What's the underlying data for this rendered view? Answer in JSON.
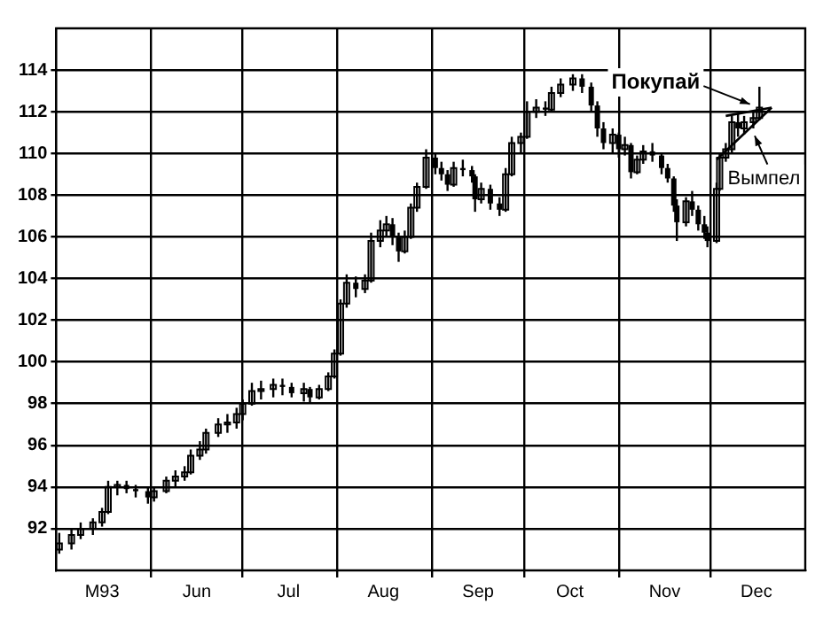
{
  "chart_data": {
    "type": "candlestick",
    "series": [
      {
        "color": "#000000",
        "x": [
          "1993-05-02",
          "1993-05-06",
          "1993-05-09",
          "1993-05-13",
          "1993-05-16",
          "1993-05-18",
          "1993-05-21",
          "1993-05-24",
          "1993-05-27",
          "1993-05-31",
          "1993-06-02",
          "1993-06-06",
          "1993-06-09",
          "1993-06-12",
          "1993-06-14",
          "1993-06-17",
          "1993-06-19",
          "1993-06-23",
          "1993-06-26",
          "1993-06-29",
          "1993-07-01",
          "1993-07-04",
          "1993-07-07",
          "1993-07-11",
          "1993-07-14",
          "1993-07-17",
          "1993-07-21",
          "1993-07-23",
          "1993-07-26",
          "1993-07-29",
          "1993-07-31",
          "1993-08-02",
          "1993-08-04",
          "1993-08-07",
          "1993-08-10",
          "1993-08-12",
          "1993-08-15",
          "1993-08-17",
          "1993-08-19",
          "1993-08-21",
          "1993-08-23",
          "1993-08-25",
          "1993-08-27",
          "1993-08-30",
          "1993-09-02",
          "1993-09-04",
          "1993-09-06",
          "1993-09-08",
          "1993-09-11",
          "1993-09-14",
          "1993-09-15",
          "1993-09-17",
          "1993-09-20",
          "1993-09-23",
          "1993-09-25",
          "1993-09-27",
          "1993-09-30",
          "1993-10-02",
          "1993-10-05",
          "1993-10-08",
          "1993-10-10",
          "1993-10-13",
          "1993-10-17",
          "1993-10-20",
          "1993-10-23",
          "1993-10-25",
          "1993-10-27",
          "1993-10-30",
          "1993-11-01",
          "1993-11-03",
          "1993-11-05",
          "1993-11-07",
          "1993-11-09",
          "1993-11-12",
          "1993-11-15",
          "1993-11-17",
          "1993-11-19",
          "1993-11-20",
          "1993-11-23",
          "1993-11-25",
          "1993-11-27",
          "1993-11-29",
          "1993-11-30",
          "1993-12-03",
          "1993-12-04",
          "1993-12-06",
          "1993-12-08",
          "1993-12-10",
          "1993-12-12",
          "1993-12-15",
          "1993-12-17"
        ],
        "ohlc": [
          [
            91.0,
            91.8,
            90.8,
            91.3
          ],
          [
            91.3,
            92.0,
            91.0,
            91.7
          ],
          [
            91.7,
            92.3,
            91.5,
            92.0
          ],
          [
            92.0,
            92.5,
            91.7,
            92.3
          ],
          [
            92.3,
            93.0,
            92.1,
            92.8
          ],
          [
            92.8,
            94.3,
            92.7,
            94.0
          ],
          [
            94.0,
            94.3,
            93.6,
            94.1
          ],
          [
            94.1,
            94.3,
            93.7,
            93.9
          ],
          [
            93.9,
            94.1,
            93.5,
            93.8
          ],
          [
            93.8,
            94.0,
            93.2,
            93.5
          ],
          [
            93.5,
            94.0,
            93.3,
            93.8
          ],
          [
            93.8,
            94.5,
            93.7,
            94.3
          ],
          [
            94.3,
            94.8,
            94.0,
            94.5
          ],
          [
            94.5,
            95.0,
            94.3,
            94.7
          ],
          [
            94.7,
            95.8,
            94.6,
            95.5
          ],
          [
            95.5,
            96.2,
            95.3,
            95.8
          ],
          [
            95.8,
            96.8,
            95.6,
            96.6
          ],
          [
            96.6,
            97.3,
            96.4,
            97.0
          ],
          [
            97.0,
            97.5,
            96.6,
            97.1
          ],
          [
            97.1,
            97.8,
            96.8,
            97.5
          ],
          [
            97.5,
            98.2,
            97.2,
            98.0
          ],
          [
            98.0,
            99.0,
            97.9,
            98.6
          ],
          [
            98.6,
            99.1,
            98.2,
            98.7
          ],
          [
            98.7,
            99.2,
            98.3,
            98.9
          ],
          [
            98.9,
            99.2,
            98.4,
            98.8
          ],
          [
            98.8,
            99.0,
            98.3,
            98.5
          ],
          [
            98.5,
            99.0,
            98.1,
            98.7
          ],
          [
            98.7,
            98.8,
            98.0,
            98.3
          ],
          [
            98.3,
            98.9,
            98.2,
            98.7
          ],
          [
            98.7,
            99.5,
            98.6,
            99.3
          ],
          [
            99.3,
            100.6,
            99.2,
            100.4
          ],
          [
            100.4,
            103.0,
            100.3,
            102.8
          ],
          [
            102.8,
            104.2,
            102.6,
            103.8
          ],
          [
            103.8,
            104.1,
            103.1,
            103.5
          ],
          [
            103.5,
            104.2,
            103.3,
            103.9
          ],
          [
            103.9,
            106.2,
            103.8,
            105.8
          ],
          [
            105.8,
            106.8,
            105.5,
            106.3
          ],
          [
            106.3,
            107.0,
            106.0,
            106.6
          ],
          [
            106.6,
            106.9,
            105.6,
            106.0
          ],
          [
            106.0,
            106.2,
            104.8,
            105.3
          ],
          [
            105.3,
            106.3,
            105.2,
            106.0
          ],
          [
            106.0,
            107.6,
            105.9,
            107.4
          ],
          [
            107.4,
            108.6,
            107.2,
            108.4
          ],
          [
            108.4,
            110.2,
            108.3,
            109.8
          ],
          [
            109.8,
            110.0,
            109.0,
            109.3
          ],
          [
            109.3,
            109.6,
            108.7,
            109.0
          ],
          [
            109.0,
            109.2,
            108.2,
            108.5
          ],
          [
            108.5,
            109.6,
            108.4,
            109.3
          ],
          [
            109.3,
            109.7,
            108.9,
            109.2
          ],
          [
            109.2,
            109.4,
            108.6,
            108.9
          ],
          [
            108.9,
            109.0,
            107.2,
            107.8
          ],
          [
            107.8,
            108.6,
            107.6,
            108.3
          ],
          [
            108.3,
            108.5,
            107.3,
            107.6
          ],
          [
            107.6,
            107.9,
            107.0,
            107.3
          ],
          [
            107.3,
            109.3,
            107.2,
            109.0
          ],
          [
            109.0,
            110.8,
            108.9,
            110.5
          ],
          [
            110.5,
            111.0,
            110.0,
            110.8
          ],
          [
            110.8,
            112.5,
            110.7,
            112.0
          ],
          [
            112.0,
            112.6,
            111.7,
            112.2
          ],
          [
            112.2,
            112.5,
            111.8,
            112.1
          ],
          [
            112.1,
            113.2,
            112.0,
            112.9
          ],
          [
            112.9,
            113.6,
            112.7,
            113.3
          ],
          [
            113.3,
            113.8,
            113.0,
            113.6
          ],
          [
            113.6,
            113.8,
            112.9,
            113.2
          ],
          [
            113.2,
            113.4,
            112.0,
            112.3
          ],
          [
            112.3,
            112.5,
            110.8,
            111.2
          ],
          [
            111.2,
            111.5,
            110.2,
            110.5
          ],
          [
            110.5,
            111.2,
            110.0,
            110.9
          ],
          [
            110.9,
            111.0,
            109.8,
            110.2
          ],
          [
            110.2,
            110.8,
            109.9,
            110.4
          ],
          [
            110.4,
            110.5,
            108.8,
            109.1
          ],
          [
            109.1,
            109.9,
            109.0,
            109.7
          ],
          [
            109.7,
            110.4,
            109.5,
            110.1
          ],
          [
            110.1,
            110.5,
            109.6,
            109.9
          ],
          [
            109.9,
            110.0,
            109.0,
            109.3
          ],
          [
            109.3,
            109.5,
            108.6,
            108.8
          ],
          [
            108.8,
            108.9,
            107.2,
            107.5
          ],
          [
            107.5,
            107.8,
            105.8,
            106.7
          ],
          [
            106.7,
            107.9,
            106.5,
            107.7
          ],
          [
            107.7,
            108.2,
            107.0,
            107.3
          ],
          [
            107.3,
            107.5,
            106.3,
            106.6
          ],
          [
            106.6,
            107.0,
            105.9,
            106.2
          ],
          [
            106.2,
            106.5,
            105.5,
            105.8
          ],
          [
            105.8,
            108.6,
            105.7,
            108.3
          ],
          [
            108.3,
            110.0,
            108.2,
            109.8
          ],
          [
            109.8,
            110.5,
            109.6,
            110.2
          ],
          [
            110.2,
            111.8,
            110.0,
            111.5
          ],
          [
            111.5,
            111.9,
            110.8,
            111.2
          ],
          [
            111.2,
            111.8,
            110.9,
            111.5
          ],
          [
            111.5,
            112.0,
            111.2,
            111.7
          ],
          [
            111.7,
            113.2,
            111.6,
            112.2
          ]
        ]
      },
      {
        "type": "line",
        "color": "#000000",
        "x": [
          "1993-12-03",
          "1993-12-21"
        ],
        "values": [
          109.7,
          112.2
        ]
      },
      {
        "type": "line",
        "color": "#000000",
        "x": [
          "1993-12-06",
          "1993-12-21"
        ],
        "values": [
          111.8,
          112.2
        ]
      }
    ],
    "xlim": [
      "1993-05-01",
      "1994-01-01"
    ],
    "xticks": [
      {
        "value": "1993-05-16",
        "label": "M93"
      },
      {
        "value": "1993-06-01",
        "label": null
      },
      {
        "value": "1993-06-16",
        "label": "Jun"
      },
      {
        "value": "1993-07-01",
        "label": null
      },
      {
        "value": "1993-07-16",
        "label": "Jul"
      },
      {
        "value": "1993-08-01",
        "label": null
      },
      {
        "value": "1993-08-16",
        "label": "Aug"
      },
      {
        "value": "1993-09-01",
        "label": null
      },
      {
        "value": "1993-09-16",
        "label": "Sep"
      },
      {
        "value": "1993-10-01",
        "label": null
      },
      {
        "value": "1993-10-16",
        "label": "Oct"
      },
      {
        "value": "1993-11-01",
        "label": null
      },
      {
        "value": "1993-11-16",
        "label": "Nov"
      },
      {
        "value": "1993-12-01",
        "label": null
      },
      {
        "value": "1993-12-16",
        "label": "Dec"
      }
    ],
    "ylim": [
      90,
      116
    ],
    "yticks": [
      92,
      94,
      96,
      98,
      100,
      102,
      104,
      106,
      108,
      110,
      112,
      114
    ],
    "grid": true,
    "annotations": [
      {
        "text": "Покупай",
        "x": "1993-12-15",
        "y": 112.3
      },
      {
        "text": "Вымпел",
        "x": "1993-12-15",
        "y": 111.0
      }
    ]
  }
}
